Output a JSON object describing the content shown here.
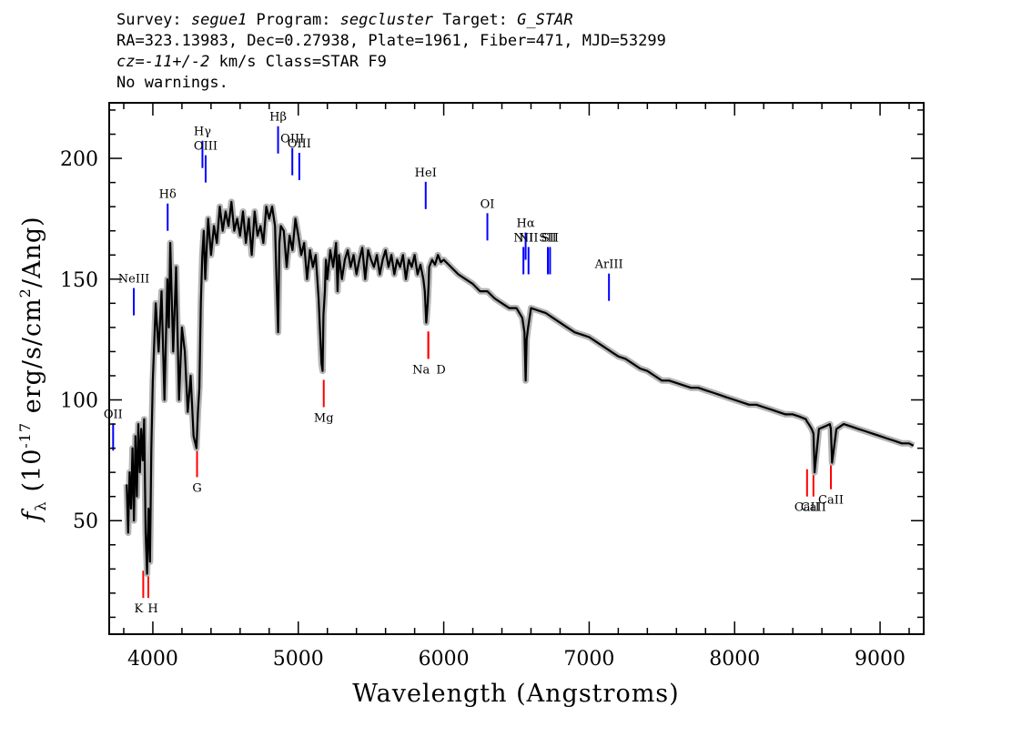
{
  "header": {
    "line1": {
      "survey_label": "Survey: ",
      "survey": "segue1",
      "program_label": " Program: ",
      "program": "segcluster",
      "target_label": " Target: ",
      "target": "G_STAR"
    },
    "line2": "RA=323.13983, Dec=0.27938, Plate=1961, Fiber=471, MJD=53299",
    "line3": {
      "cz": "cz=-11+/-2",
      "rest": " km/s Class=STAR F9"
    },
    "line4": "No warnings."
  },
  "chart_data": {
    "type": "line",
    "xlabel": "Wavelength (Angstroms)",
    "ylabel_symbol": "f",
    "ylabel_sub": "λ",
    "ylabel_text_pre": "(10",
    "ylabel_exp": "-17",
    "ylabel_text_mid": " erg/s/cm",
    "ylabel_exp2": "2",
    "ylabel_text_post": "/Ang)",
    "xlim": [
      3700,
      9300
    ],
    "ylim": [
      3,
      223
    ],
    "xticks": [
      4000,
      5000,
      6000,
      7000,
      8000,
      9000
    ],
    "yticks": [
      50,
      100,
      150,
      200
    ],
    "grid": false,
    "colors": {
      "spectrum": "#000000",
      "error": "#b4b4b4",
      "emission": "#0000ff",
      "absorption": "#ff0000"
    },
    "spectrum": {
      "x": [
        3820,
        3830,
        3840,
        3850,
        3860,
        3870,
        3880,
        3890,
        3900,
        3910,
        3920,
        3930,
        3940,
        3950,
        3960,
        3970,
        3980,
        3990,
        4000,
        4020,
        4040,
        4060,
        4080,
        4100,
        4110,
        4120,
        4140,
        4160,
        4180,
        4200,
        4220,
        4240,
        4260,
        4280,
        4300,
        4310,
        4320,
        4330,
        4340,
        4350,
        4360,
        4380,
        4400,
        4420,
        4440,
        4460,
        4480,
        4500,
        4520,
        4540,
        4560,
        4580,
        4600,
        4620,
        4640,
        4660,
        4680,
        4700,
        4720,
        4740,
        4760,
        4780,
        4800,
        4820,
        4840,
        4850,
        4861,
        4870,
        4880,
        4900,
        4920,
        4940,
        4960,
        4980,
        5000,
        5020,
        5040,
        5060,
        5080,
        5100,
        5120,
        5140,
        5150,
        5160,
        5167,
        5173,
        5183,
        5190,
        5200,
        5220,
        5240,
        5260,
        5270,
        5280,
        5300,
        5320,
        5340,
        5360,
        5380,
        5400,
        5420,
        5440,
        5460,
        5480,
        5500,
        5520,
        5540,
        5560,
        5580,
        5600,
        5620,
        5640,
        5660,
        5680,
        5700,
        5720,
        5740,
        5760,
        5780,
        5800,
        5820,
        5840,
        5860,
        5870,
        5880,
        5890,
        5896,
        5900,
        5920,
        5940,
        5960,
        5980,
        6000,
        6050,
        6100,
        6150,
        6200,
        6250,
        6300,
        6350,
        6400,
        6450,
        6500,
        6540,
        6555,
        6563,
        6570,
        6580,
        6600,
        6650,
        6700,
        6750,
        6800,
        6850,
        6900,
        6950,
        7000,
        7050,
        7100,
        7150,
        7200,
        7250,
        7300,
        7350,
        7400,
        7450,
        7500,
        7550,
        7600,
        7650,
        7700,
        7750,
        7800,
        7850,
        7900,
        7950,
        8000,
        8050,
        8100,
        8150,
        8200,
        8250,
        8300,
        8350,
        8400,
        8450,
        8490,
        8498,
        8510,
        8530,
        8542,
        8550,
        8580,
        8620,
        8655,
        8662,
        8670,
        8700,
        8750,
        8800,
        8850,
        8900,
        8950,
        9000,
        9050,
        9100,
        9150,
        9200,
        9230
      ],
      "y": [
        65,
        45,
        70,
        55,
        80,
        50,
        85,
        60,
        90,
        70,
        88,
        75,
        92,
        45,
        28,
        55,
        33,
        80,
        108,
        140,
        120,
        145,
        100,
        150,
        130,
        165,
        120,
        155,
        100,
        130,
        120,
        95,
        110,
        85,
        80,
        95,
        105,
        140,
        160,
        170,
        150,
        175,
        160,
        172,
        165,
        180,
        170,
        178,
        172,
        182,
        170,
        175,
        168,
        178,
        165,
        175,
        160,
        178,
        168,
        172,
        165,
        180,
        175,
        180,
        172,
        150,
        128,
        165,
        172,
        170,
        155,
        168,
        162,
        175,
        168,
        160,
        165,
        150,
        162,
        155,
        160,
        142,
        128,
        115,
        112,
        135,
        145,
        158,
        150,
        162,
        155,
        165,
        145,
        160,
        150,
        158,
        162,
        155,
        160,
        152,
        158,
        163,
        150,
        162,
        158,
        155,
        160,
        152,
        158,
        162,
        155,
        160,
        152,
        158,
        155,
        160,
        150,
        158,
        155,
        160,
        152,
        156,
        150,
        145,
        132,
        140,
        148,
        155,
        158,
        156,
        160,
        157,
        158,
        155,
        152,
        150,
        148,
        145,
        145,
        142,
        140,
        138,
        138,
        134,
        128,
        108,
        125,
        130,
        138,
        137,
        136,
        134,
        132,
        130,
        128,
        127,
        126,
        124,
        122,
        120,
        118,
        117,
        115,
        113,
        112,
        110,
        108,
        108,
        107,
        106,
        105,
        105,
        104,
        103,
        102,
        101,
        100,
        99,
        98,
        98,
        97,
        96,
        95,
        94,
        94,
        93,
        92,
        91,
        90,
        88,
        86,
        70,
        88,
        89,
        90,
        88,
        74,
        88,
        90,
        89,
        88,
        87,
        86,
        85,
        84,
        83,
        82,
        82,
        81
      ]
    },
    "markers": {
      "emission": [
        {
          "label": "OII",
          "x": 3727,
          "y": 79
        },
        {
          "label": "NeIII",
          "x": 3869,
          "y": 135
        },
        {
          "label": "Hδ",
          "x": 4102,
          "y": 170
        },
        {
          "label": "Hγ",
          "x": 4341,
          "y": 196
        },
        {
          "label": "OIII",
          "x": 4363,
          "y": 190
        },
        {
          "label": "Hβ",
          "x": 4861,
          "y": 202
        },
        {
          "label": "OIII",
          "x": 4959,
          "y": 193
        },
        {
          "label": "OIII",
          "x": 5007,
          "y": 191
        },
        {
          "label": "HeI",
          "x": 5876,
          "y": 179
        },
        {
          "label": "OI",
          "x": 6300,
          "y": 166
        },
        {
          "label": "NII",
          "x": 6548,
          "y": 152
        },
        {
          "label": "Hα",
          "x": 6563,
          "y": 158
        },
        {
          "label": "NII",
          "x": 6583,
          "y": 152
        },
        {
          "label": "SII",
          "x": 6716,
          "y": 152
        },
        {
          "label": "SII",
          "x": 6731,
          "y": 152
        },
        {
          "label": "ArIII",
          "x": 7136,
          "y": 141
        }
      ],
      "absorption": [
        {
          "label": "K",
          "x": 3934,
          "y": 18
        },
        {
          "label": "H",
          "x": 3969,
          "y": 18
        },
        {
          "label": "G",
          "x": 4304,
          "y": 68
        },
        {
          "label": "Mg",
          "x": 5175,
          "y": 97
        },
        {
          "label": "Na",
          "x": 5894,
          "y": 117
        },
        {
          "label": "D",
          "x": 5894,
          "y": 117
        },
        {
          "label": "CaII",
          "x": 8498,
          "y": 60
        },
        {
          "label": "CaII",
          "x": 8542,
          "y": 60
        },
        {
          "label": "CaII",
          "x": 8662,
          "y": 63
        }
      ]
    }
  }
}
